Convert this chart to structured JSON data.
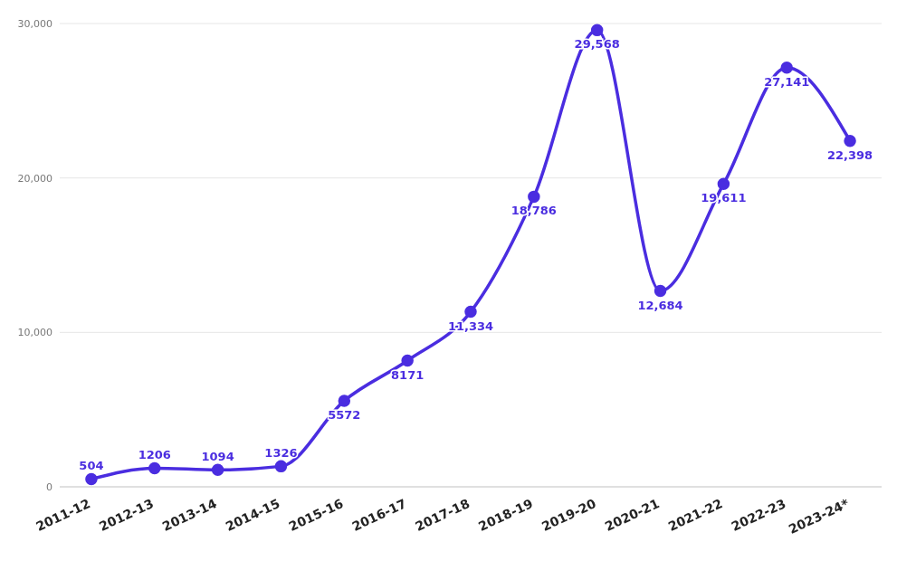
{
  "chart_data": {
    "type": "line",
    "categories": [
      "2011-12",
      "2012-13",
      "2013-14",
      "2014-15",
      "2015-16",
      "2016-17",
      "2017-18",
      "2018-19",
      "2019-20",
      "2020-21",
      "2021-22",
      "2022-23",
      "2023-24*"
    ],
    "series": [
      {
        "color": "#4a2de0",
        "values": [
          504,
          1206,
          1094,
          1326,
          5572,
          8171,
          11334,
          18786,
          29568,
          12684,
          19611,
          27141,
          22398
        ],
        "value_labels": [
          "504",
          "1206",
          "1094",
          "1326",
          "5572",
          "8171",
          "11,334",
          "18,786",
          "29,568",
          "12,684",
          "19,611",
          "27,141",
          "22,398"
        ]
      }
    ],
    "ylim": [
      0,
      30000
    ],
    "yticks": [
      {
        "value": 0,
        "label": "0"
      },
      {
        "value": 10000,
        "label": "10,000"
      },
      {
        "value": 20000,
        "label": "20,000"
      },
      {
        "value": 30000,
        "label": "30,000"
      }
    ],
    "grid": "y",
    "marker": "circle",
    "line_style": "solid",
    "legend": false
  }
}
